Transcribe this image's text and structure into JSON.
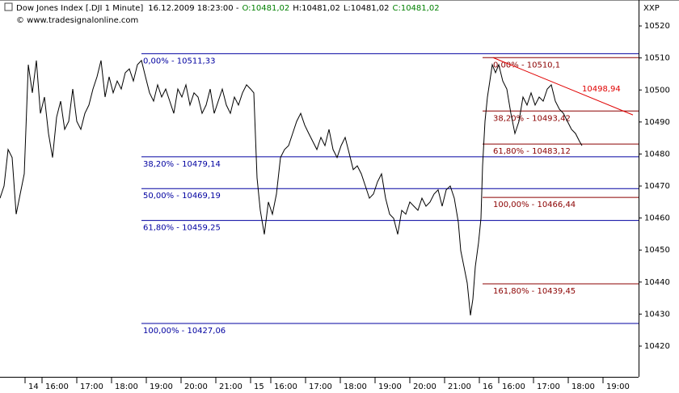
{
  "chart_data": {
    "type": "line",
    "title": "Dow Jones Index [.DJI  1 Minute]",
    "timestamp": "16.12.2009 18:23:00 -",
    "ohlc": [
      "O:10481,02",
      "H:10481,02",
      "L:10481,02",
      "C:10481,02"
    ],
    "ohlc_colors": [
      "#008000",
      "#000000",
      "#000000",
      "#008000"
    ],
    "subtitle": "© www.tradesignalonline.com",
    "corner_label": "XXP",
    "xlim": [
      0,
      790
    ],
    "ylim": [
      10410.4,
      10528.1
    ],
    "yticks": [
      10420,
      10430,
      10440,
      10450,
      10460,
      10470,
      10480,
      10490,
      10500,
      10510,
      10520
    ],
    "xticks": [
      {
        "value": 31,
        "label": "14"
      },
      {
        "value": 52,
        "label": "16:00"
      },
      {
        "value": 95,
        "label": "17:00"
      },
      {
        "value": 138,
        "label": "18:00"
      },
      {
        "value": 181,
        "label": "19:00"
      },
      {
        "value": 224,
        "label": "20:00"
      },
      {
        "value": 267,
        "label": "21:00"
      },
      {
        "value": 310,
        "label": "15"
      },
      {
        "value": 335,
        "label": "16:00"
      },
      {
        "value": 378,
        "label": "17:00"
      },
      {
        "value": 421,
        "label": "18:00"
      },
      {
        "value": 464,
        "label": "19:00"
      },
      {
        "value": 507,
        "label": "20:00"
      },
      {
        "value": 550,
        "label": "21:00"
      },
      {
        "value": 593,
        "label": "16"
      },
      {
        "value": 617,
        "label": "16:00"
      },
      {
        "value": 660,
        "label": "17:00"
      },
      {
        "value": 703,
        "label": "18:00"
      },
      {
        "value": 746,
        "label": "19:00"
      }
    ],
    "series": [
      {
        "color": "#000000",
        "x": [
          0,
          5,
          10,
          15,
          20,
          25,
          30,
          35,
          40,
          45,
          50,
          55,
          60,
          65,
          70,
          75,
          80,
          85,
          90,
          95,
          100,
          105,
          110,
          115,
          120,
          125,
          130,
          135,
          140,
          145,
          150,
          155,
          160,
          165,
          170,
          175,
          180,
          185,
          190,
          195,
          200,
          205,
          210,
          215,
          220,
          225,
          230,
          235,
          240,
          245,
          250,
          255,
          260,
          265,
          270,
          275,
          280,
          285,
          290,
          295,
          300,
          305,
          310,
          314,
          318,
          322,
          327,
          332,
          337,
          342,
          347,
          352,
          357,
          362,
          367,
          372,
          377,
          382,
          387,
          392,
          397,
          402,
          407,
          412,
          417,
          422,
          427,
          432,
          437,
          442,
          447,
          452,
          457,
          462,
          467,
          472,
          477,
          482,
          487,
          492,
          497,
          502,
          507,
          512,
          517,
          522,
          527,
          532,
          537,
          542,
          547,
          552,
          557,
          562,
          567,
          570,
          574,
          578,
          582,
          585,
          588,
          592,
          595,
          597,
          600,
          603,
          606,
          609,
          613,
          617,
          622,
          627,
          632,
          637,
          642,
          647,
          652,
          657,
          662,
          667,
          672,
          677,
          682,
          687,
          692,
          697,
          702,
          707,
          712,
          717,
          720
        ],
        "values": [
          10466.2,
          10470.0,
          10481.4,
          10478.9,
          10461.2,
          10467.5,
          10473.8,
          10507.9,
          10499.1,
          10509.2,
          10492.7,
          10497.8,
          10486.4,
          10478.9,
          10491.5,
          10496.5,
          10487.7,
          10490.2,
          10500.3,
          10490.2,
          10487.7,
          10492.7,
          10495.3,
          10500.3,
          10504.1,
          10509.2,
          10497.8,
          10504.1,
          10499.1,
          10502.8,
          10500.3,
          10505.4,
          10506.6,
          10502.8,
          10507.9,
          10509.2,
          10504.1,
          10499.1,
          10496.5,
          10501.6,
          10497.8,
          10500.3,
          10496.5,
          10492.7,
          10500.3,
          10497.8,
          10501.6,
          10495.3,
          10499.1,
          10497.8,
          10492.7,
          10495.3,
          10500.3,
          10492.7,
          10496.5,
          10500.3,
          10495.3,
          10492.7,
          10497.8,
          10495.3,
          10499.1,
          10501.6,
          10500.3,
          10499.1,
          10472.5,
          10462.4,
          10454.9,
          10465.0,
          10461.2,
          10467.5,
          10478.9,
          10481.4,
          10482.6,
          10486.4,
          10490.2,
          10492.7,
          10489.0,
          10486.4,
          10483.9,
          10481.4,
          10485.2,
          10482.6,
          10487.7,
          10481.4,
          10478.9,
          10482.6,
          10485.2,
          10480.2,
          10475.1,
          10476.3,
          10473.8,
          10470.0,
          10466.2,
          10467.5,
          10471.3,
          10473.8,
          10466.2,
          10461.2,
          10459.9,
          10454.9,
          10462.4,
          10461.2,
          10465.0,
          10463.7,
          10462.4,
          10466.2,
          10463.7,
          10465.0,
          10467.5,
          10468.8,
          10463.7,
          10468.8,
          10470.0,
          10466.2,
          10458.7,
          10449.8,
          10444.8,
          10439.7,
          10429.6,
          10434.7,
          10444.8,
          10452.3,
          10459.9,
          10476.3,
          10490.2,
          10497.8,
          10502.8,
          10507.9,
          10505.4,
          10507.9,
          10502.8,
          10500.3,
          10492.7,
          10486.4,
          10490.2,
          10497.8,
          10495.3,
          10499.1,
          10495.3,
          10497.8,
          10496.5,
          10500.3,
          10501.6,
          10496.5,
          10494.0,
          10492.7,
          10490.2,
          10487.7,
          10486.4,
          10483.9,
          10482.6
        ]
      }
    ],
    "fib_sets": [
      {
        "color": "#0000a0",
        "levels": [
          {
            "value": 10511.33,
            "label": "0,00% - 10511,33"
          },
          {
            "value": 10479.14,
            "label": "38,20% - 10479,14"
          },
          {
            "value": 10469.19,
            "label": "50,00% - 10469,19"
          },
          {
            "value": 10459.25,
            "label": "61,80% - 10459,25"
          },
          {
            "value": 10427.06,
            "label": "100,00% - 10427,06"
          }
        ]
      },
      {
        "color": "#8b0000",
        "levels": [
          {
            "value": 10510.1,
            "label": "0,00% - 10510,1"
          },
          {
            "value": 10493.42,
            "label": "38,20% - 10493,42"
          },
          {
            "value": 10483.12,
            "label": "61,80% - 10483,12"
          },
          {
            "value": 10466.44,
            "label": "100,00% - 10466,44"
          },
          {
            "value": 10439.45,
            "label": "161,80% - 10439,45"
          }
        ]
      }
    ],
    "trendline": {
      "color": "#e00000",
      "label": "10498,94",
      "x": [
        610,
        783
      ],
      "values": [
        10510.1,
        10492.2
      ]
    }
  }
}
